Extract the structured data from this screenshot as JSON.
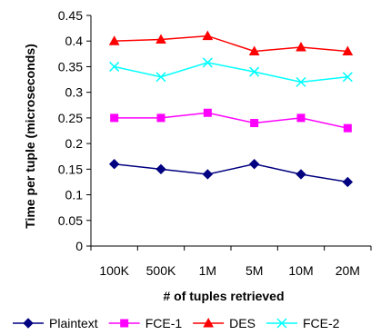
{
  "chart_data": {
    "type": "line",
    "categories": [
      "100K",
      "500K",
      "1M",
      "5M",
      "10M",
      "20M"
    ],
    "xlabel": "# of tuples retrieved",
    "ylabel": "Time per tuple (microseconds)",
    "ylim": [
      0,
      0.45
    ],
    "yticks": [
      "0",
      "0.05",
      "0.1",
      "0.15",
      "0.2",
      "0.25",
      "0.3",
      "0.35",
      "0.4",
      "0.45"
    ],
    "grid": false,
    "legend_position": "bottom",
    "series": [
      {
        "name": "Plaintext",
        "values": [
          0.16,
          0.15,
          0.14,
          0.16,
          0.14,
          0.125
        ],
        "color": "#000080",
        "marker": "diamond"
      },
      {
        "name": "FCE-1",
        "values": [
          0.25,
          0.25,
          0.26,
          0.24,
          0.25,
          0.23
        ],
        "color": "#ff00ff",
        "marker": "square"
      },
      {
        "name": "DES",
        "values": [
          0.4,
          0.403,
          0.41,
          0.38,
          0.388,
          0.38
        ],
        "color": "#ff0000",
        "marker": "triangle"
      },
      {
        "name": "FCE-2",
        "values": [
          0.35,
          0.33,
          0.358,
          0.34,
          0.32,
          0.33
        ],
        "color": "#00ffff",
        "marker": "x"
      }
    ]
  }
}
